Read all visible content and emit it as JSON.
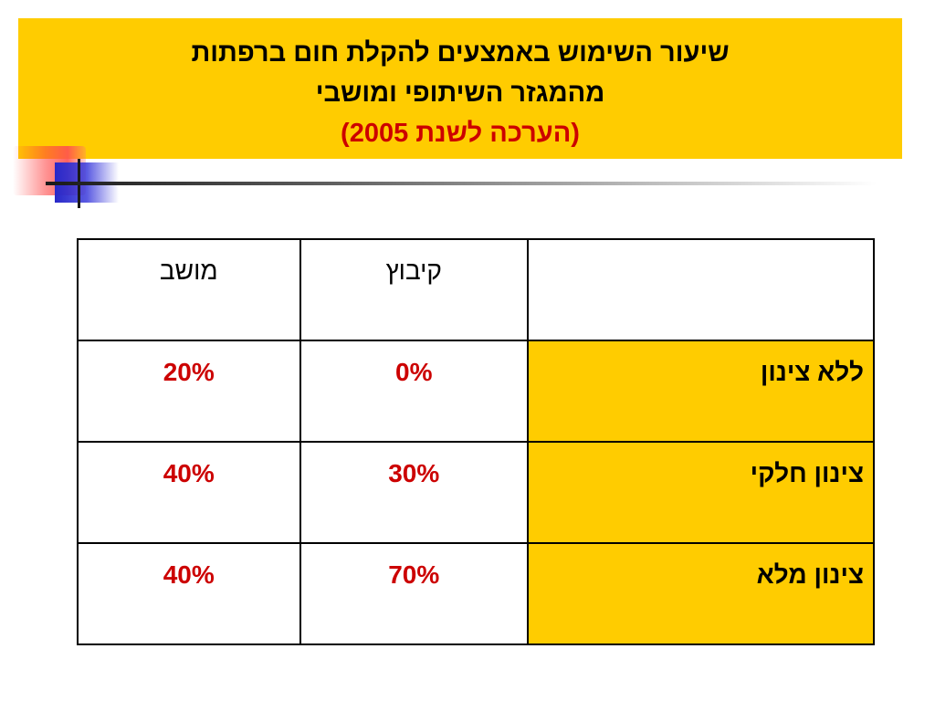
{
  "slide": {
    "title_line1": "שיעור השימוש באמצעים להקלת חום ברפתות",
    "title_line2": "מהמגזר השיתופי ומושבי",
    "title_line3": "(הערכה לשנת 2005)",
    "colors": {
      "banner": "#ffcc00",
      "highlight_text": "#cc0000",
      "decor_blue": "#2828c8",
      "decor_red": "#ff5050"
    }
  },
  "table": {
    "headers": {
      "corner": "",
      "kibbutz": "קיבוץ",
      "moshav": "מושב"
    },
    "rows": [
      {
        "label": "ללא צינון",
        "kibbutz": "0%",
        "moshav": "20%"
      },
      {
        "label": "צינון חלקי",
        "kibbutz": "30%",
        "moshav": "40%"
      },
      {
        "label": "צינון מלא",
        "kibbutz": "70%",
        "moshav": "40%"
      }
    ]
  }
}
